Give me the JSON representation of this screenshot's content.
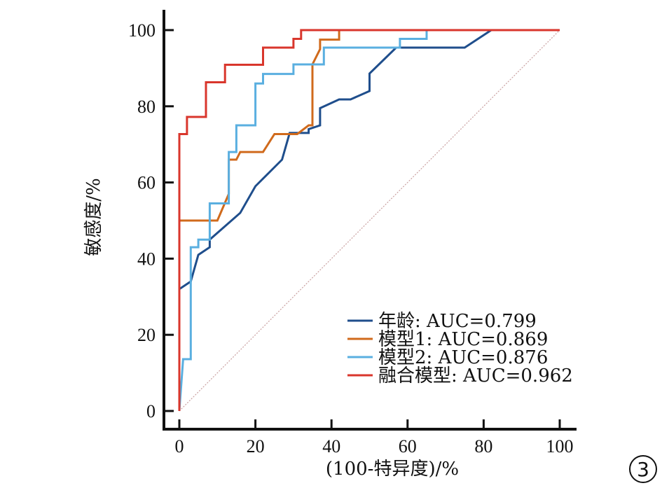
{
  "chart_data": {
    "type": "line",
    "title": "",
    "xlabel": "(100-特异度)/%",
    "ylabel": "敏感度/%",
    "xlim": [
      0,
      100
    ],
    "ylim": [
      0,
      100
    ],
    "xticks": [
      0,
      20,
      40,
      60,
      80,
      100
    ],
    "yticks": [
      0,
      20,
      40,
      60,
      80,
      100
    ],
    "grid": false,
    "legend_position": "bottom-right",
    "reference_line": {
      "x": [
        0,
        100
      ],
      "y": [
        0,
        100
      ],
      "color": "#c9a0a0",
      "style": "dotted"
    },
    "series": [
      {
        "name": "年龄",
        "label": "年龄: AUC=0.799",
        "color": "#1f4e8c",
        "x": [
          0,
          0,
          3,
          5,
          8,
          8,
          16,
          20,
          27,
          29,
          34,
          34,
          37,
          37,
          42,
          45,
          50,
          50,
          57,
          75,
          82,
          100
        ],
        "y": [
          0,
          32,
          34,
          41,
          43,
          45,
          52,
          59,
          66,
          73,
          73,
          74,
          75,
          79.5,
          81.8,
          81.8,
          84,
          88.6,
          95.4,
          95.4,
          100,
          100
        ]
      },
      {
        "name": "模型1",
        "label": "模型1: AUC=0.869",
        "color": "#d06a1c",
        "x": [
          0,
          0,
          10,
          13,
          13,
          15,
          16,
          22,
          25,
          31,
          34,
          35,
          35,
          37,
          37,
          42,
          42,
          100
        ],
        "y": [
          0,
          50,
          50,
          57,
          66,
          66,
          68,
          68,
          72.7,
          72.7,
          75,
          75,
          91,
          95,
          97.5,
          97.5,
          100,
          100
        ]
      },
      {
        "name": "模型2",
        "label": "模型2: AUC=0.876",
        "color": "#5aafe0",
        "x": [
          0,
          1,
          3,
          3,
          5,
          5,
          8,
          8,
          13,
          13,
          15,
          15,
          20,
          20,
          22,
          22,
          25,
          25,
          30,
          30,
          35,
          38,
          38,
          45,
          45,
          58,
          58,
          65,
          65,
          100
        ],
        "y": [
          0,
          13.6,
          13.6,
          43,
          43,
          45,
          45,
          54.5,
          54.5,
          68,
          68,
          75,
          75,
          86,
          86,
          88.5,
          88.5,
          88.5,
          88.5,
          91,
          91,
          91,
          95.4,
          95.4,
          95.4,
          95.4,
          97.7,
          97.7,
          100,
          100
        ]
      },
      {
        "name": "融合模型",
        "label": "融合模型: AUC=0.962",
        "color": "#d9362c",
        "x": [
          0,
          0,
          2,
          2,
          7,
          7,
          12,
          12,
          22,
          22,
          30,
          30,
          32,
          32,
          100
        ],
        "y": [
          0,
          72.7,
          72.7,
          77.2,
          77.2,
          86.3,
          86.3,
          90.9,
          90.9,
          95.4,
          95.4,
          97.7,
          97.7,
          100,
          100
        ]
      }
    ],
    "annotation": "3"
  }
}
